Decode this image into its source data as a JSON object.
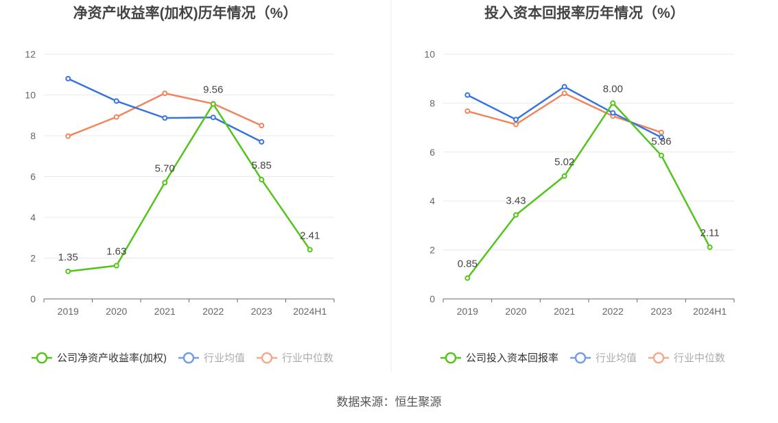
{
  "colors": {
    "company": "#52c41a",
    "industry_avg": "#3573e0",
    "industry_median": "#f0845c",
    "axis": "#666666",
    "grid": "#e6e8ee",
    "title": "#444444",
    "text": "#444444"
  },
  "source": "数据来源：恒生聚源",
  "chart_data": [
    {
      "type": "line",
      "title": "净资产收益率(加权)历年情况（%）",
      "categories": [
        "2019",
        "2020",
        "2021",
        "2022",
        "2023",
        "2024H1"
      ],
      "ylim": [
        0,
        12
      ],
      "yticks": [
        0,
        2,
        4,
        6,
        8,
        10,
        12
      ],
      "grid": true,
      "legend_position": "bottom",
      "series": [
        {
          "name": "公司净资产收益率(加权)",
          "color_key": "company",
          "values": [
            1.35,
            1.63,
            5.7,
            9.56,
            5.85,
            2.41
          ],
          "labels": [
            "1.35",
            "1.63",
            "5.70",
            "9.56",
            "5.85",
            "2.41"
          ]
        },
        {
          "name": "行业均值",
          "color_key": "industry_avg",
          "values": [
            10.8,
            9.7,
            8.87,
            8.9,
            7.7,
            null
          ]
        },
        {
          "name": "行业中位数",
          "color_key": "industry_median",
          "values": [
            7.98,
            8.92,
            10.08,
            9.57,
            8.5,
            null
          ]
        }
      ]
    },
    {
      "type": "line",
      "title": "投入资本回报率历年情况（%）",
      "categories": [
        "2019",
        "2020",
        "2021",
        "2022",
        "2023",
        "2024H1"
      ],
      "ylim": [
        0,
        10
      ],
      "yticks": [
        0,
        2,
        4,
        6,
        8,
        10
      ],
      "grid": true,
      "legend_position": "bottom",
      "series": [
        {
          "name": "公司投入资本回报率",
          "color_key": "company",
          "values": [
            0.85,
            3.43,
            5.02,
            8.0,
            5.86,
            2.11
          ],
          "labels": [
            "0.85",
            "3.43",
            "5.02",
            "8.00",
            "5.86",
            "2.11"
          ]
        },
        {
          "name": "行业均值",
          "color_key": "industry_avg",
          "values": [
            8.33,
            7.33,
            8.67,
            7.6,
            6.6,
            null
          ]
        },
        {
          "name": "行业中位数",
          "color_key": "industry_median",
          "values": [
            7.67,
            7.13,
            8.4,
            7.47,
            6.8,
            null
          ]
        }
      ]
    }
  ]
}
